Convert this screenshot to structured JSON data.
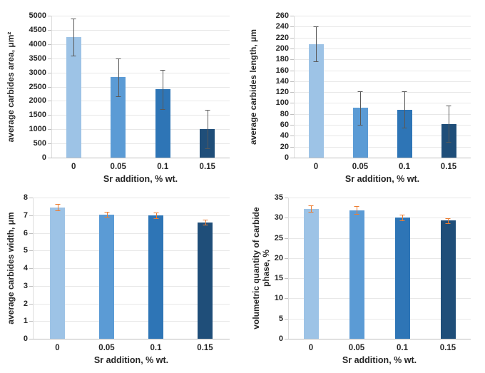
{
  "chart_data": [
    {
      "type": "bar",
      "title": "",
      "ylabel": "average carbides area, μm²",
      "xlabel": "Sr addition, % wt.",
      "categories": [
        "0",
        "0.05",
        "0.1",
        "0.15"
      ],
      "values": [
        4250,
        2830,
        2400,
        1000
      ],
      "errors": [
        650,
        670,
        680,
        680
      ],
      "ylim": [
        0,
        5000
      ],
      "ytick_step": 500,
      "grid": true,
      "legend_position": "none",
      "bar_colors": [
        "#9dc3e6",
        "#5b9bd5",
        "#2e75b6",
        "#1f4e79"
      ],
      "error_color": "#595959"
    },
    {
      "type": "bar",
      "title": "",
      "ylabel": "average carbides length, μm",
      "xlabel": "Sr addition, % wt.",
      "categories": [
        "0",
        "0.05",
        "0.1",
        "0.15"
      ],
      "values": [
        208,
        91,
        88,
        62
      ],
      "errors": [
        32,
        31,
        33,
        33
      ],
      "ylim": [
        0,
        260
      ],
      "ytick_step": 20,
      "grid": true,
      "legend_position": "none",
      "bar_colors": [
        "#9dc3e6",
        "#5b9bd5",
        "#2e75b6",
        "#1f4e79"
      ],
      "error_color": "#595959"
    },
    {
      "type": "bar",
      "title": "",
      "ylabel": "average carbides width, μm",
      "xlabel": "Sr addition, % wt.",
      "categories": [
        "0",
        "0.05",
        "0.1",
        "0.15"
      ],
      "values": [
        7.45,
        7.05,
        7.0,
        6.6
      ],
      "errors": [
        0.18,
        0.15,
        0.17,
        0.15
      ],
      "ylim": [
        0,
        8
      ],
      "ytick_step": 1,
      "grid": true,
      "legend_position": "none",
      "bar_colors": [
        "#9dc3e6",
        "#5b9bd5",
        "#2e75b6",
        "#1f4e79"
      ],
      "error_color": "#ed7d31"
    },
    {
      "type": "bar",
      "title": "",
      "ylabel": "volumetric quantity of carbide phase, %",
      "xlabel": "Sr addition, % wt.",
      "categories": [
        "0",
        "0.05",
        "0.1",
        "0.15"
      ],
      "values": [
        32.2,
        31.9,
        30.1,
        29.3
      ],
      "errors": [
        0.8,
        1.0,
        0.7,
        0.6
      ],
      "ylim": [
        0,
        35
      ],
      "ytick_step": 5,
      "grid": true,
      "legend_position": "none",
      "bar_colors": [
        "#9dc3e6",
        "#5b9bd5",
        "#2e75b6",
        "#1f4e79"
      ],
      "error_color": "#ed7d31"
    }
  ],
  "style": {
    "background": "#ffffff",
    "text_color": "#262626",
    "gridline_color": "#e8e8e8",
    "axis_color": "#bfbfbf"
  }
}
